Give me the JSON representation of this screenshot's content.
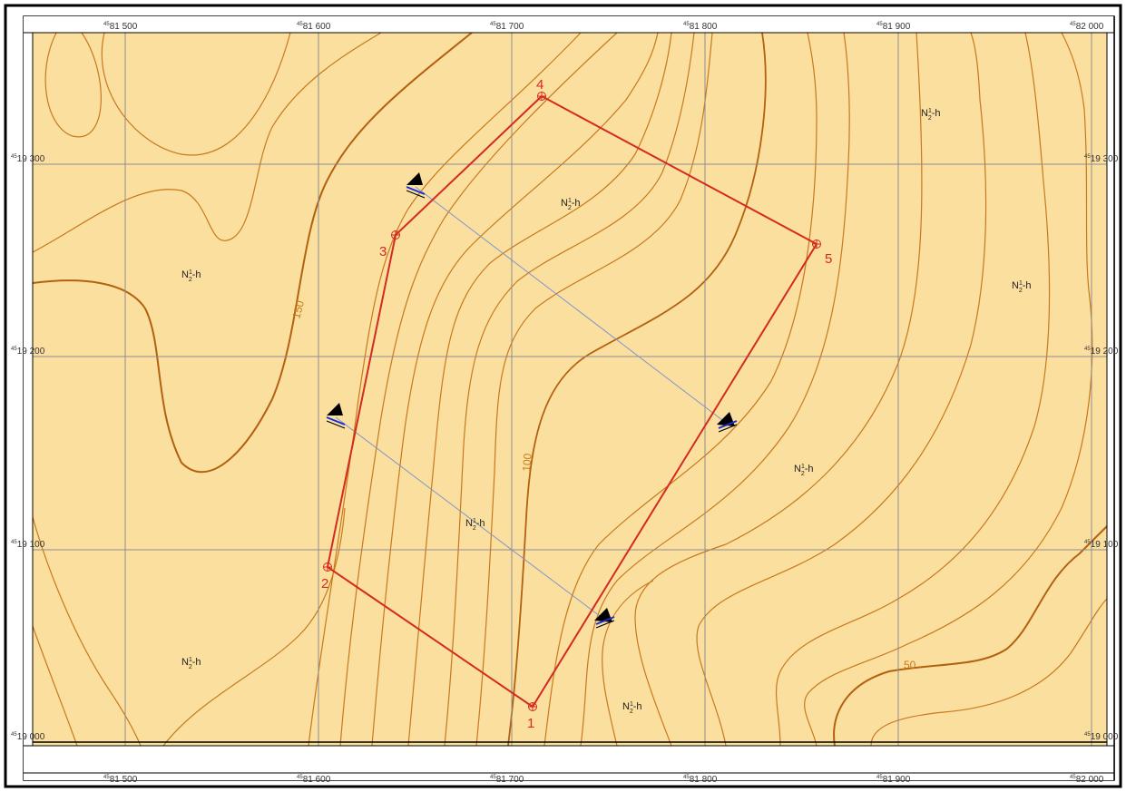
{
  "colors": {
    "background": "#fbdf9f",
    "contour": "#c8791c",
    "contour_index": "#b4610f",
    "boundary": "#d42a1f",
    "section_line": "#7f95c9",
    "grid": "#8c8c8c",
    "frame": "#000000"
  },
  "grid": {
    "x_labels": [
      {
        "prefix": "45",
        "value": "81 500"
      },
      {
        "prefix": "45",
        "value": "81 600"
      },
      {
        "prefix": "45",
        "value": "81 700"
      },
      {
        "prefix": "45",
        "value": "81 800"
      },
      {
        "prefix": "45",
        "value": "81 900"
      },
      {
        "prefix": "45",
        "value": "82 000"
      }
    ],
    "y_labels": [
      {
        "prefix": "45",
        "value": "19 300"
      },
      {
        "prefix": "45",
        "value": "19 200"
      },
      {
        "prefix": "45",
        "value": "19 100"
      },
      {
        "prefix": "45",
        "value": "19 000"
      }
    ]
  },
  "boundary_points": [
    {
      "id": "1",
      "label": "1"
    },
    {
      "id": "2",
      "label": "2"
    },
    {
      "id": "3",
      "label": "3"
    },
    {
      "id": "4",
      "label": "4"
    },
    {
      "id": "5",
      "label": "5"
    }
  ],
  "contour_labels": [
    {
      "id": "c150",
      "text": "150"
    },
    {
      "id": "c100",
      "text": "100"
    },
    {
      "id": "c50",
      "text": "50"
    }
  ],
  "geology_labels": [
    {
      "id": "g1",
      "main": "N",
      "sup": "1",
      "sub": "2",
      "suffix": "-h"
    },
    {
      "id": "g2",
      "main": "N",
      "sup": "1",
      "sub": "2",
      "suffix": "-h"
    },
    {
      "id": "g3",
      "main": "N",
      "sup": "1",
      "sub": "2",
      "suffix": "-h"
    },
    {
      "id": "g4",
      "main": "N",
      "sup": "1",
      "sub": "2",
      "suffix": "-h"
    },
    {
      "id": "g5",
      "main": "N",
      "sup": "1",
      "sub": "2",
      "suffix": "-h"
    },
    {
      "id": "g6",
      "main": "N",
      "sup": "1",
      "sub": "2",
      "suffix": "-h"
    },
    {
      "id": "g7",
      "main": "N",
      "sup": "1",
      "sub": "2",
      "suffix": "-h"
    },
    {
      "id": "g8",
      "main": "N",
      "sup": "1",
      "sub": "2",
      "suffix": "-h"
    }
  ],
  "section_markers": [
    {
      "id": "s1",
      "icon": "section-arrow-icon"
    },
    {
      "id": "s2",
      "icon": "section-arrow-icon"
    },
    {
      "id": "s3",
      "icon": "section-arrow-icon"
    },
    {
      "id": "s4",
      "icon": "section-arrow-icon"
    }
  ]
}
